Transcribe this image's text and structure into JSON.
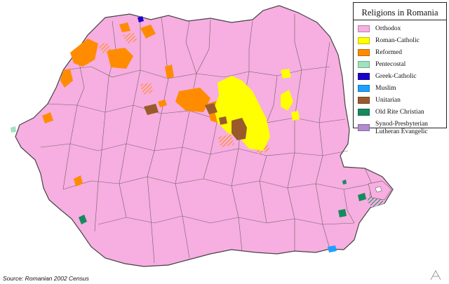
{
  "legend": {
    "title": "Religions in Romania",
    "items": [
      {
        "label": "Orthodox",
        "color": "#f7aee0"
      },
      {
        "label": "Roman-Catholic",
        "color": "#ffff00"
      },
      {
        "label": "Reformed",
        "color": "#ff8c00"
      },
      {
        "label": "Pentecostal",
        "color": "#9fe2bf"
      },
      {
        "label": "Greek-Catholic",
        "color": "#1a00c8"
      },
      {
        "label": "Muslim",
        "color": "#1ea0ff"
      },
      {
        "label": "Unitarian",
        "color": "#9a5b2c"
      },
      {
        "label": "Old Rite Christian",
        "color": "#168a5e"
      },
      {
        "label": "Synod-Presbyterian Lutheran Evangelic",
        "color": "#b28ad0"
      }
    ]
  },
  "source": "Source: Romanian 2002 Census",
  "colors": {
    "border": "#555555",
    "background": "#ffffff"
  }
}
